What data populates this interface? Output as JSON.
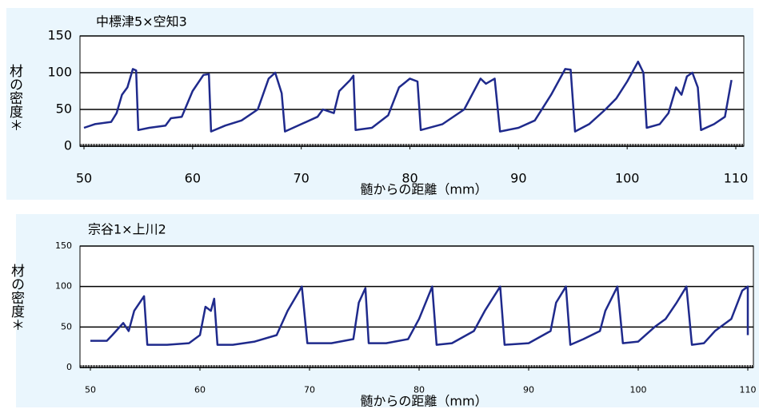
{
  "chart_data": [
    {
      "type": "line",
      "title": "中標津5×空知3",
      "ylabel": "材の密度＊",
      "xlabel": "髄からの距離（mm）",
      "x": [
        50,
        51,
        52.5,
        53,
        53.5,
        54,
        54.5,
        54.8,
        55,
        56,
        57.5,
        58,
        59,
        60,
        61,
        61.5,
        61.7,
        63,
        64.5,
        66,
        67,
        67.6,
        68.2,
        68.5,
        70,
        71.5,
        72,
        73,
        73.5,
        74.5,
        74.8,
        75,
        76.5,
        78,
        79,
        80,
        80.7,
        81,
        83,
        85,
        86.5,
        87,
        87.8,
        88.3,
        90,
        91.5,
        93,
        94.3,
        94.8,
        95.2,
        96.5,
        98,
        99,
        100,
        101,
        101.5,
        101.8,
        103,
        103.8,
        104.5,
        105,
        105.5,
        106,
        106.5,
        106.8,
        108,
        109,
        109.6
      ],
      "series": [
        {
          "color": "#1f2a8c",
          "values": [
            25,
            30,
            33,
            45,
            70,
            80,
            105,
            103,
            22,
            25,
            28,
            38,
            40,
            75,
            97,
            98,
            20,
            28,
            35,
            50,
            92,
            100,
            72,
            20,
            30,
            40,
            50,
            45,
            75,
            90,
            96,
            22,
            25,
            42,
            80,
            92,
            88,
            22,
            30,
            50,
            92,
            85,
            92,
            20,
            25,
            35,
            70,
            105,
            104,
            20,
            30,
            50,
            65,
            88,
            115,
            100,
            25,
            30,
            45,
            80,
            70,
            95,
            100,
            80,
            22,
            30,
            40,
            90
          ]
        }
      ],
      "xlim": [
        50,
        110
      ],
      "ylim": [
        0,
        150
      ],
      "xticks": [
        50,
        60,
        70,
        80,
        90,
        100,
        110
      ],
      "yticks": [
        0,
        50,
        100,
        150
      ],
      "grid": true
    },
    {
      "type": "line",
      "title": "宗谷1×上川2",
      "ylabel": "材の密度＊",
      "xlabel": "髄からの距離（mm）",
      "x": [
        50,
        51.5,
        52,
        53,
        53.5,
        54,
        54.9,
        55.2,
        57,
        59,
        60,
        60.5,
        61,
        61.3,
        61.6,
        63,
        65,
        67,
        68,
        69.3,
        69.8,
        72,
        74,
        74.5,
        75.1,
        75.4,
        77,
        79,
        80,
        81.2,
        81.6,
        83,
        85,
        86,
        87.4,
        87.8,
        90,
        92,
        92.5,
        93.4,
        93.8,
        95,
        96.5,
        97,
        98.1,
        98.6,
        100,
        101.5,
        102.5,
        103.5,
        104.4,
        104.9,
        106,
        107,
        107.5,
        108.5,
        109.5,
        110,
        110
      ],
      "series": [
        {
          "color": "#1f2a8c",
          "values": [
            33,
            33,
            40,
            55,
            45,
            70,
            88,
            28,
            28,
            30,
            40,
            75,
            70,
            85,
            28,
            28,
            32,
            40,
            70,
            100,
            30,
            30,
            35,
            80,
            98,
            30,
            30,
            35,
            60,
            100,
            28,
            30,
            45,
            70,
            100,
            28,
            30,
            45,
            80,
            100,
            28,
            35,
            45,
            70,
            100,
            30,
            32,
            50,
            60,
            80,
            100,
            28,
            30,
            45,
            50,
            60,
            95,
            100,
            40
          ]
        }
      ],
      "xlim": [
        50,
        110
      ],
      "ylim": [
        0,
        150
      ],
      "xticks": [
        50,
        60,
        70,
        80,
        90,
        100,
        110
      ],
      "yticks": [
        0,
        50,
        100,
        150
      ],
      "grid": true
    }
  ]
}
